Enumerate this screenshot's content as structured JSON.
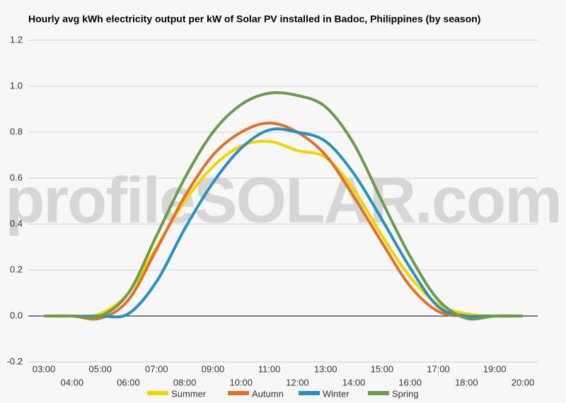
{
  "chart_data": {
    "type": "line",
    "title": "Hourly avg kWh electricity output per kW of Solar PV installed in Badoc, Philippines (by season)",
    "watermark": "profileSOLAR.com",
    "categories": [
      "03:00",
      "04:00",
      "05:00",
      "06:00",
      "07:00",
      "08:00",
      "09:00",
      "10:00",
      "11:00",
      "12:00",
      "13:00",
      "14:00",
      "15:00",
      "16:00",
      "17:00",
      "18:00",
      "19:00",
      "20:00"
    ],
    "series": [
      {
        "name": "Summer",
        "color": "#f2d400",
        "values": [
          0,
          0,
          0.01,
          0.1,
          0.3,
          0.5,
          0.65,
          0.74,
          0.76,
          0.72,
          0.69,
          0.55,
          0.35,
          0.17,
          0.05,
          0.01,
          0,
          0
        ]
      },
      {
        "name": "Autumn",
        "color": "#e0712a",
        "values": [
          0,
          0,
          -0.01,
          0.07,
          0.29,
          0.52,
          0.7,
          0.8,
          0.84,
          0.8,
          0.7,
          0.52,
          0.32,
          0.13,
          0.02,
          0,
          0,
          0
        ]
      },
      {
        "name": "Winter",
        "color": "#2a8fc0",
        "values": [
          0,
          0,
          0,
          0.01,
          0.15,
          0.38,
          0.58,
          0.73,
          0.81,
          0.8,
          0.76,
          0.62,
          0.42,
          0.21,
          0.04,
          0,
          0,
          0
        ]
      },
      {
        "name": "Spring",
        "color": "#6b9a4f",
        "values": [
          0,
          0,
          0,
          0.1,
          0.35,
          0.6,
          0.8,
          0.92,
          0.97,
          0.96,
          0.91,
          0.75,
          0.5,
          0.26,
          0.07,
          -0.01,
          0,
          0
        ]
      }
    ],
    "ylim": [
      -0.2,
      1.2
    ],
    "yticks": [
      {
        "value": -0.2,
        "label": "-0.2"
      },
      {
        "value": 0,
        "label": "0.0"
      },
      0.2,
      0.4,
      0.6,
      0.8,
      {
        "value": 1,
        "label": "1.0"
      },
      1.2
    ],
    "grid": true,
    "legend": "bottom"
  }
}
